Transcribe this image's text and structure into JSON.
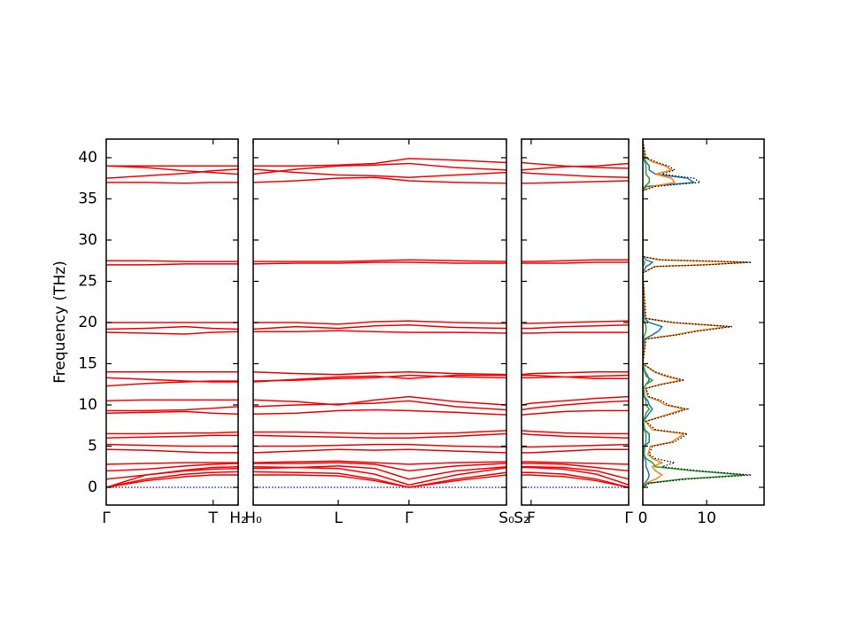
{
  "chart_data": [
    {
      "type": "line",
      "ylabel": "Frequency (THz)",
      "ytick_labels": true,
      "color": "#ff0000",
      "ylim": [
        -2.15,
        42.25
      ],
      "yticks": [
        0,
        5,
        10,
        15,
        20,
        25,
        30,
        35,
        40
      ],
      "xlim": [
        0,
        1
      ],
      "xticks": [
        {
          "value": 0,
          "label": "Γ"
        },
        {
          "value": 0.81,
          "label": "T"
        },
        {
          "value": 1,
          "label": "H₂"
        }
      ],
      "x": [
        0,
        0.3,
        0.6,
        0.8,
        1.0
      ],
      "series": [
        {
          "values": [
            0,
            0,
            0,
            0,
            0
          ],
          "color": "#0000ff",
          "linestyle": "dotted"
        },
        {
          "values": [
            0,
            0.8,
            1.3,
            1.5,
            1.5
          ]
        },
        {
          "values": [
            0,
            1.0,
            1.6,
            1.8,
            1.9
          ]
        },
        {
          "values": [
            0,
            1.5,
            2.1,
            2.4,
            2.5
          ]
        },
        {
          "values": [
            1.0,
            1.5,
            2.0,
            2.2,
            2.3
          ]
        },
        {
          "values": [
            2.0,
            2.2,
            2.6,
            2.8,
            2.9
          ]
        },
        {
          "values": [
            2.8,
            2.9,
            3.0,
            3.0,
            3.0
          ]
        },
        {
          "values": [
            4.6,
            4.5,
            4.3,
            4.2,
            4.2
          ]
        },
        {
          "values": [
            5.2,
            5.1,
            5.0,
            5.0,
            5.0
          ]
        },
        {
          "values": [
            6.0,
            6.1,
            6.2,
            6.3,
            6.3
          ]
        },
        {
          "values": [
            6.5,
            6.5,
            6.6,
            6.6,
            6.7
          ]
        },
        {
          "values": [
            9.0,
            9.1,
            9.2,
            9.0,
            8.9
          ]
        },
        {
          "values": [
            9.3,
            9.3,
            9.4,
            9.6,
            9.8
          ]
        },
        {
          "values": [
            10.5,
            10.6,
            10.6,
            10.6,
            10.6
          ]
        },
        {
          "values": [
            12.3,
            12.6,
            12.8,
            12.9,
            12.9
          ]
        },
        {
          "values": [
            13.3,
            13.1,
            12.9,
            12.8,
            12.8
          ]
        },
        {
          "values": [
            14.0,
            14.0,
            14.0,
            14.0,
            14.0
          ]
        },
        {
          "values": [
            18.8,
            18.7,
            18.6,
            18.8,
            18.9
          ]
        },
        {
          "values": [
            19.2,
            19.3,
            19.5,
            19.3,
            19.2
          ]
        },
        {
          "values": [
            20.0,
            20.0,
            20.0,
            20.0,
            20.0
          ]
        },
        {
          "values": [
            27.0,
            27.0,
            27.1,
            27.1,
            27.1
          ]
        },
        {
          "values": [
            27.5,
            27.5,
            27.4,
            27.4,
            27.4
          ]
        },
        {
          "values": [
            37.0,
            37.0,
            36.9,
            37.0,
            37.0
          ]
        },
        {
          "values": [
            37.5,
            37.8,
            38.1,
            38.4,
            38.6
          ]
        },
        {
          "values": [
            39.0,
            38.8,
            38.4,
            38.2,
            38.0
          ]
        },
        {
          "values": [
            39.0,
            39.0,
            39.0,
            39.0,
            39.0
          ]
        }
      ]
    },
    {
      "type": "line",
      "color": "#ff0000",
      "ylim": [
        -2.15,
        42.25
      ],
      "yticks": [
        0,
        5,
        10,
        15,
        20,
        25,
        30,
        35,
        40
      ],
      "xlim": [
        0,
        1
      ],
      "xticks": [
        {
          "value": 0,
          "label": "H₀"
        },
        {
          "value": 0.336,
          "label": "L"
        },
        {
          "value": 0.615,
          "label": "Γ"
        },
        {
          "value": 1,
          "label": "S₀"
        }
      ],
      "x": [
        0,
        0.17,
        0.336,
        0.48,
        0.615,
        0.8,
        1.0
      ],
      "series": [
        {
          "values": [
            0,
            0,
            0,
            0,
            0,
            0,
            0
          ],
          "color": "#0000ff",
          "linestyle": "dotted"
        },
        {
          "values": [
            1.5,
            1.5,
            1.4,
            0.8,
            0,
            0.8,
            1.5
          ]
        },
        {
          "values": [
            1.9,
            1.8,
            1.7,
            1.0,
            0,
            1.0,
            1.8
          ]
        },
        {
          "values": [
            2.5,
            2.4,
            2.3,
            1.6,
            0.3,
            1.5,
            2.4
          ]
        },
        {
          "values": [
            2.3,
            2.4,
            2.6,
            2.3,
            1.0,
            2.0,
            2.5
          ]
        },
        {
          "values": [
            2.9,
            2.9,
            3.0,
            2.8,
            2.0,
            2.6,
            2.9
          ]
        },
        {
          "values": [
            3.0,
            3.1,
            3.2,
            3.0,
            2.8,
            3.0,
            3.1
          ]
        },
        {
          "values": [
            4.2,
            4.4,
            4.6,
            4.5,
            4.6,
            4.4,
            4.2
          ]
        },
        {
          "values": [
            5.0,
            5.0,
            5.1,
            5.2,
            5.2,
            5.0,
            4.9
          ]
        },
        {
          "values": [
            6.3,
            6.2,
            6.1,
            6.0,
            6.0,
            6.2,
            6.5
          ]
        },
        {
          "values": [
            6.7,
            6.7,
            6.6,
            6.5,
            6.5,
            6.6,
            6.9
          ]
        },
        {
          "values": [
            8.9,
            9.0,
            9.3,
            9.4,
            9.3,
            9.1,
            8.8
          ]
        },
        {
          "values": [
            9.8,
            10.0,
            10.1,
            10.2,
            10.5,
            9.8,
            9.4
          ]
        },
        {
          "values": [
            10.6,
            10.4,
            10.0,
            10.6,
            11.0,
            10.4,
            10.0
          ]
        },
        {
          "values": [
            12.9,
            13.0,
            13.2,
            13.3,
            13.6,
            13.4,
            13.3
          ]
        },
        {
          "values": [
            12.8,
            13.1,
            13.4,
            13.5,
            13.2,
            13.6,
            13.6
          ]
        },
        {
          "values": [
            14.0,
            13.8,
            13.7,
            13.9,
            14.0,
            13.8,
            13.7
          ]
        },
        {
          "values": [
            18.9,
            18.9,
            19.0,
            18.9,
            18.8,
            18.8,
            18.7
          ]
        },
        {
          "values": [
            19.2,
            19.5,
            19.3,
            19.6,
            19.7,
            19.4,
            19.3
          ]
        },
        {
          "values": [
            20.0,
            20.0,
            19.8,
            20.1,
            20.2,
            20.0,
            19.9
          ]
        },
        {
          "values": [
            27.1,
            27.2,
            27.2,
            27.3,
            27.3,
            27.2,
            27.2
          ]
        },
        {
          "values": [
            27.4,
            27.4,
            27.4,
            27.5,
            27.6,
            27.5,
            27.4
          ]
        },
        {
          "values": [
            37.0,
            37.2,
            37.5,
            37.6,
            37.2,
            37.0,
            36.9
          ]
        },
        {
          "values": [
            38.6,
            38.2,
            37.9,
            37.8,
            37.6,
            37.9,
            38.2
          ]
        },
        {
          "values": [
            38.0,
            38.6,
            39.0,
            39.1,
            39.3,
            38.8,
            38.5
          ]
        },
        {
          "values": [
            39.0,
            39.0,
            39.1,
            39.3,
            39.9,
            39.7,
            39.4
          ]
        }
      ]
    },
    {
      "type": "line",
      "color": "#ff0000",
      "ylim": [
        -2.15,
        42.25
      ],
      "yticks": [
        0,
        5,
        10,
        15,
        20,
        25,
        30,
        35,
        40
      ],
      "xlim": [
        0,
        1
      ],
      "xticks": [
        {
          "value": 0,
          "label": "S₂"
        },
        {
          "value": 0.09,
          "label": "F"
        },
        {
          "value": 1,
          "label": "Γ"
        }
      ],
      "x": [
        0,
        0.09,
        0.4,
        0.7,
        1.0
      ],
      "series": [
        {
          "values": [
            0,
            0,
            0,
            0,
            0
          ],
          "color": "#0000ff",
          "linestyle": "dotted"
        },
        {
          "values": [
            1.5,
            1.5,
            1.3,
            0.8,
            0
          ]
        },
        {
          "values": [
            1.8,
            1.8,
            1.6,
            1.0,
            0
          ]
        },
        {
          "values": [
            2.4,
            2.4,
            2.2,
            1.6,
            0.3
          ]
        },
        {
          "values": [
            2.5,
            2.5,
            2.4,
            2.0,
            1.0
          ]
        },
        {
          "values": [
            2.9,
            2.9,
            2.8,
            2.4,
            2.0
          ]
        },
        {
          "values": [
            3.1,
            3.1,
            3.0,
            2.9,
            2.8
          ]
        },
        {
          "values": [
            4.2,
            4.2,
            4.4,
            4.6,
            4.6
          ]
        },
        {
          "values": [
            4.9,
            4.9,
            5.0,
            5.1,
            5.2
          ]
        },
        {
          "values": [
            6.5,
            6.4,
            6.2,
            6.1,
            6.0
          ]
        },
        {
          "values": [
            6.9,
            6.8,
            6.6,
            6.5,
            6.5
          ]
        },
        {
          "values": [
            8.8,
            8.9,
            9.2,
            9.3,
            9.3
          ]
        },
        {
          "values": [
            9.4,
            9.6,
            10.0,
            10.3,
            10.5
          ]
        },
        {
          "values": [
            10.0,
            10.2,
            10.5,
            10.8,
            11.0
          ]
        },
        {
          "values": [
            13.3,
            13.3,
            13.4,
            13.5,
            13.6
          ]
        },
        {
          "values": [
            13.6,
            13.6,
            13.4,
            13.2,
            13.2
          ]
        },
        {
          "values": [
            13.7,
            13.8,
            13.9,
            14.0,
            14.0
          ]
        },
        {
          "values": [
            18.7,
            18.7,
            18.8,
            18.8,
            18.8
          ]
        },
        {
          "values": [
            19.3,
            19.3,
            19.5,
            19.6,
            19.7
          ]
        },
        {
          "values": [
            19.9,
            19.9,
            20.0,
            20.1,
            20.2
          ]
        },
        {
          "values": [
            27.2,
            27.2,
            27.2,
            27.3,
            27.3
          ]
        },
        {
          "values": [
            27.4,
            27.4,
            27.5,
            27.6,
            27.6
          ]
        },
        {
          "values": [
            36.9,
            36.9,
            37.0,
            37.1,
            37.2
          ]
        },
        {
          "values": [
            38.2,
            38.1,
            37.9,
            37.7,
            37.6
          ]
        },
        {
          "values": [
            38.5,
            38.6,
            38.9,
            39.0,
            39.3
          ]
        },
        {
          "values": [
            39.4,
            39.3,
            39.0,
            38.8,
            38.7
          ]
        }
      ]
    },
    {
      "type": "line",
      "orientation": "horizontal",
      "ylim": [
        -2.15,
        42.25
      ],
      "yticks": [
        0,
        5,
        10,
        15,
        20,
        25,
        30,
        35,
        40
      ],
      "xlim": [
        0,
        19
      ],
      "xticks": [
        0,
        10
      ],
      "y": [
        0,
        0.5,
        1,
        1.5,
        2,
        2.5,
        3,
        3.5,
        4,
        5,
        5.5,
        6,
        6.5,
        7,
        8,
        9,
        9.5,
        10,
        10.5,
        11,
        12,
        12.5,
        13,
        13.5,
        14,
        15,
        18,
        18.5,
        19,
        19.5,
        20,
        20.5,
        26,
        26.8,
        27,
        27.3,
        27.6,
        28,
        36,
        36.5,
        37,
        37.5,
        38,
        38.5,
        39,
        39.5,
        40,
        42
      ],
      "series": [
        {
          "color": "#1f77b4",
          "values": [
            0,
            0.3,
            0.8,
            1,
            0.8,
            0.5,
            0.5,
            0.3,
            0.2,
            0.3,
            1,
            1,
            1,
            0.3,
            0.1,
            1,
            1.5,
            1,
            0.8,
            0.3,
            0.1,
            0.5,
            1,
            0.8,
            0.4,
            0,
            0.2,
            1.5,
            2.5,
            3,
            1,
            0.2,
            0,
            0.5,
            1,
            1.5,
            0.5,
            0,
            0,
            0.5,
            8,
            7,
            2,
            1,
            1,
            0.5,
            0.2,
            0
          ]
        },
        {
          "color": "#ff7f0e",
          "values": [
            0,
            0.5,
            2,
            3,
            2,
            1.5,
            3,
            1.5,
            0.8,
            1.2,
            4.5,
            5.5,
            6.5,
            1.5,
            0.4,
            4.5,
            6.5,
            3.5,
            2.5,
            0.8,
            0.4,
            2.8,
            6,
            3.5,
            1.8,
            0,
            0.4,
            5,
            8.5,
            13.5,
            4.5,
            0.4,
            0,
            1.8,
            9.5,
            16.5,
            2.5,
            0,
            0,
            1.5,
            5,
            4.5,
            2,
            4.5,
            3.5,
            1.5,
            0.4,
            0
          ]
        },
        {
          "color": "#2ca02c",
          "values": [
            0,
            0.8,
            6,
            16,
            8,
            2,
            1.5,
            0.5,
            0.2,
            0.2,
            0.5,
            0.5,
            0.5,
            0.2,
            0.1,
            0.5,
            1,
            0.5,
            0.5,
            0.2,
            0.1,
            0.5,
            1.5,
            0.5,
            0.3,
            0,
            0,
            0.3,
            0.5,
            0.5,
            0.3,
            0,
            0,
            0,
            0.2,
            0.3,
            0,
            0,
            0,
            0.3,
            1,
            1,
            0.5,
            0.5,
            0.5,
            0.3,
            0.1,
            0
          ]
        },
        {
          "color": "#000000",
          "linestyle": "dotted",
          "values": [
            0,
            1,
            7,
            17,
            9,
            3,
            5,
            2,
            1,
            1.5,
            5,
            6,
            7,
            2,
            0.5,
            5,
            7,
            4,
            3,
            1,
            0.5,
            3,
            6.5,
            4,
            2,
            0,
            0.5,
            5.5,
            9,
            14,
            5,
            0.5,
            0,
            2,
            10,
            17,
            3,
            0,
            0,
            2,
            9,
            8,
            3,
            5,
            4,
            2,
            0.5,
            0
          ]
        }
      ]
    }
  ]
}
